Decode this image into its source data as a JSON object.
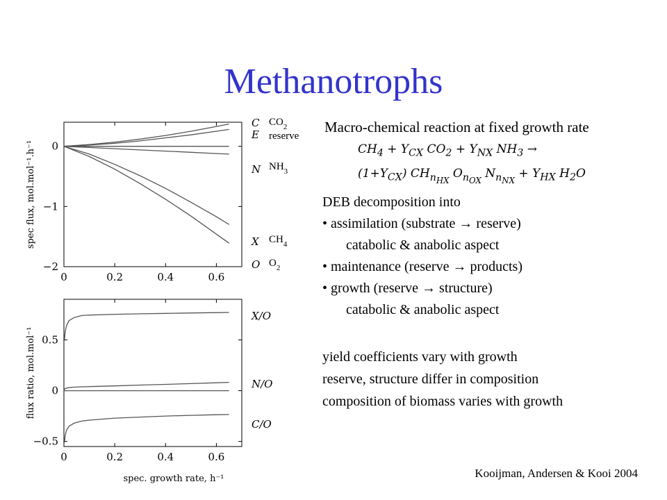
{
  "title": "Methanotrophs",
  "citation": "Kooijman, Andersen & Kooi 2004",
  "macro_heading": "Macro-chemical reaction at fixed growth rate",
  "equation": {
    "line1": "CH4 + YCX CO2 + YNX NH3 →",
    "line2": "(1+YCX) CHnHX OnOX NnNX + YHX H2O"
  },
  "deb": {
    "heading": "DEB decomposition into",
    "items": [
      "• assimilation (substrate → reserve)",
      "catabolic & anabolic aspect",
      "• maintenance (reserve → products)",
      "• growth (reserve → structure)",
      "catabolic & anabolic aspect"
    ]
  },
  "notes": [
    "yield coefficients vary with growth",
    "reserve, structure differ in composition",
    "composition of biomass varies with growth"
  ],
  "chart_data": [
    {
      "type": "line",
      "title": "",
      "xlabel": "",
      "ylabel": "spec flux, mol.mol⁻¹.h⁻¹",
      "xlim": [
        0,
        0.7
      ],
      "ylim": [
        -2,
        0.4
      ],
      "xticks": [
        "0",
        "0.2",
        "0.4",
        "0.6"
      ],
      "yticks": [
        "0",
        "−1",
        "−2"
      ],
      "series": [
        {
          "name": "C",
          "label": "CO2",
          "x": [
            0,
            0.1,
            0.2,
            0.3,
            0.4,
            0.5,
            0.6,
            0.65
          ],
          "values": [
            0,
            0.03,
            0.07,
            0.12,
            0.18,
            0.25,
            0.33,
            0.37
          ]
        },
        {
          "name": "E",
          "label": "reserve",
          "x": [
            0,
            0.1,
            0.2,
            0.3,
            0.4,
            0.5,
            0.6,
            0.65
          ],
          "values": [
            0,
            0.02,
            0.05,
            0.09,
            0.14,
            0.19,
            0.25,
            0.28
          ]
        },
        {
          "name": "",
          "label": "",
          "x": [
            0,
            0.65
          ],
          "values": [
            0,
            0
          ]
        },
        {
          "name": "N",
          "label": "NH3",
          "x": [
            0,
            0.1,
            0.2,
            0.3,
            0.4,
            0.5,
            0.6,
            0.65
          ],
          "values": [
            0,
            -0.02,
            -0.04,
            -0.06,
            -0.08,
            -0.1,
            -0.12,
            -0.13
          ]
        },
        {
          "name": "X",
          "label": "CH4",
          "x": [
            0,
            0.1,
            0.2,
            0.3,
            0.4,
            0.5,
            0.6,
            0.65
          ],
          "values": [
            0,
            -0.13,
            -0.3,
            -0.49,
            -0.7,
            -0.93,
            -1.17,
            -1.3
          ]
        },
        {
          "name": "O",
          "label": "O2",
          "x": [
            0,
            0.1,
            0.2,
            0.3,
            0.4,
            0.5,
            0.6,
            0.65
          ],
          "values": [
            0,
            -0.17,
            -0.38,
            -0.62,
            -0.88,
            -1.16,
            -1.46,
            -1.61
          ]
        }
      ]
    },
    {
      "type": "line",
      "title": "",
      "xlabel": "spec. growth rate, h⁻¹",
      "ylabel": "flux ratio, mol.mol⁻¹",
      "xlim": [
        0,
        0.7
      ],
      "ylim": [
        -0.55,
        0.9
      ],
      "xticks": [
        "0",
        "0.2",
        "0.4",
        "0.6"
      ],
      "yticks": [
        "0.5",
        "0",
        "−0.5"
      ],
      "series": [
        {
          "name": "X/O",
          "x": [
            0.002,
            0.005,
            0.01,
            0.02,
            0.04,
            0.07,
            0.1,
            0.2,
            0.3,
            0.4,
            0.5,
            0.6,
            0.65
          ],
          "values": [
            0.5,
            0.58,
            0.64,
            0.69,
            0.72,
            0.74,
            0.745,
            0.752,
            0.757,
            0.761,
            0.765,
            0.769,
            0.771
          ]
        },
        {
          "name": "N/O",
          "x": [
            0.002,
            0.005,
            0.01,
            0.02,
            0.04,
            0.07,
            0.1,
            0.2,
            0.3,
            0.4,
            0.5,
            0.6,
            0.65
          ],
          "values": [
            0.01,
            0.02,
            0.025,
            0.03,
            0.035,
            0.038,
            0.04,
            0.047,
            0.055,
            0.062,
            0.07,
            0.078,
            0.082
          ]
        },
        {
          "name": "",
          "x": [
            0,
            0.65
          ],
          "values": [
            0,
            0
          ]
        },
        {
          "name": "C/O",
          "x": [
            0.002,
            0.005,
            0.01,
            0.02,
            0.04,
            0.07,
            0.1,
            0.2,
            0.3,
            0.4,
            0.5,
            0.6,
            0.65
          ],
          "values": [
            -0.51,
            -0.44,
            -0.39,
            -0.35,
            -0.32,
            -0.3,
            -0.29,
            -0.27,
            -0.26,
            -0.25,
            -0.243,
            -0.237,
            -0.235
          ]
        }
      ]
    }
  ]
}
